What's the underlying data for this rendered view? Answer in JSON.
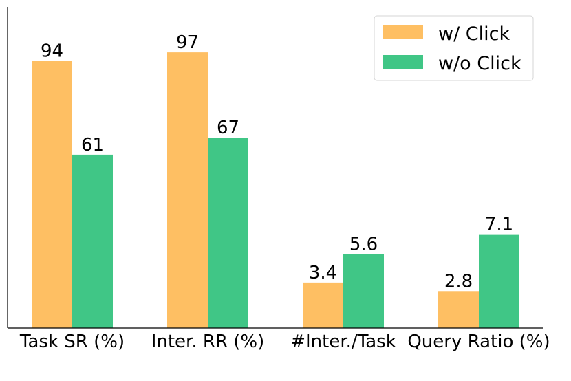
{
  "chart_data": {
    "type": "bar",
    "categories": [
      "Task SR (%)",
      "Inter. RR (%)",
      "#Inter./Task",
      "Query Ratio (%)"
    ],
    "series": [
      {
        "name": "w/ Click",
        "color": "#FEBF63",
        "values": [
          94,
          97,
          3.4,
          2.8
        ],
        "labels": [
          "94",
          "97",
          "3.4",
          "2.8"
        ],
        "bar_units": [
          94,
          97,
          16.0,
          13.0
        ]
      },
      {
        "name": "w/o Click",
        "color": "#40C686",
        "values": [
          61,
          67,
          5.6,
          7.1
        ],
        "labels": [
          "61",
          "67",
          "5.6",
          "7.1"
        ],
        "bar_units": [
          61,
          67,
          26.0,
          33.0
        ]
      }
    ],
    "ylim": [
      0,
      113
    ],
    "y_ticks_visible": false,
    "grid": false,
    "legend_position": "top-right",
    "title": "",
    "xlabel": "",
    "ylabel": ""
  }
}
